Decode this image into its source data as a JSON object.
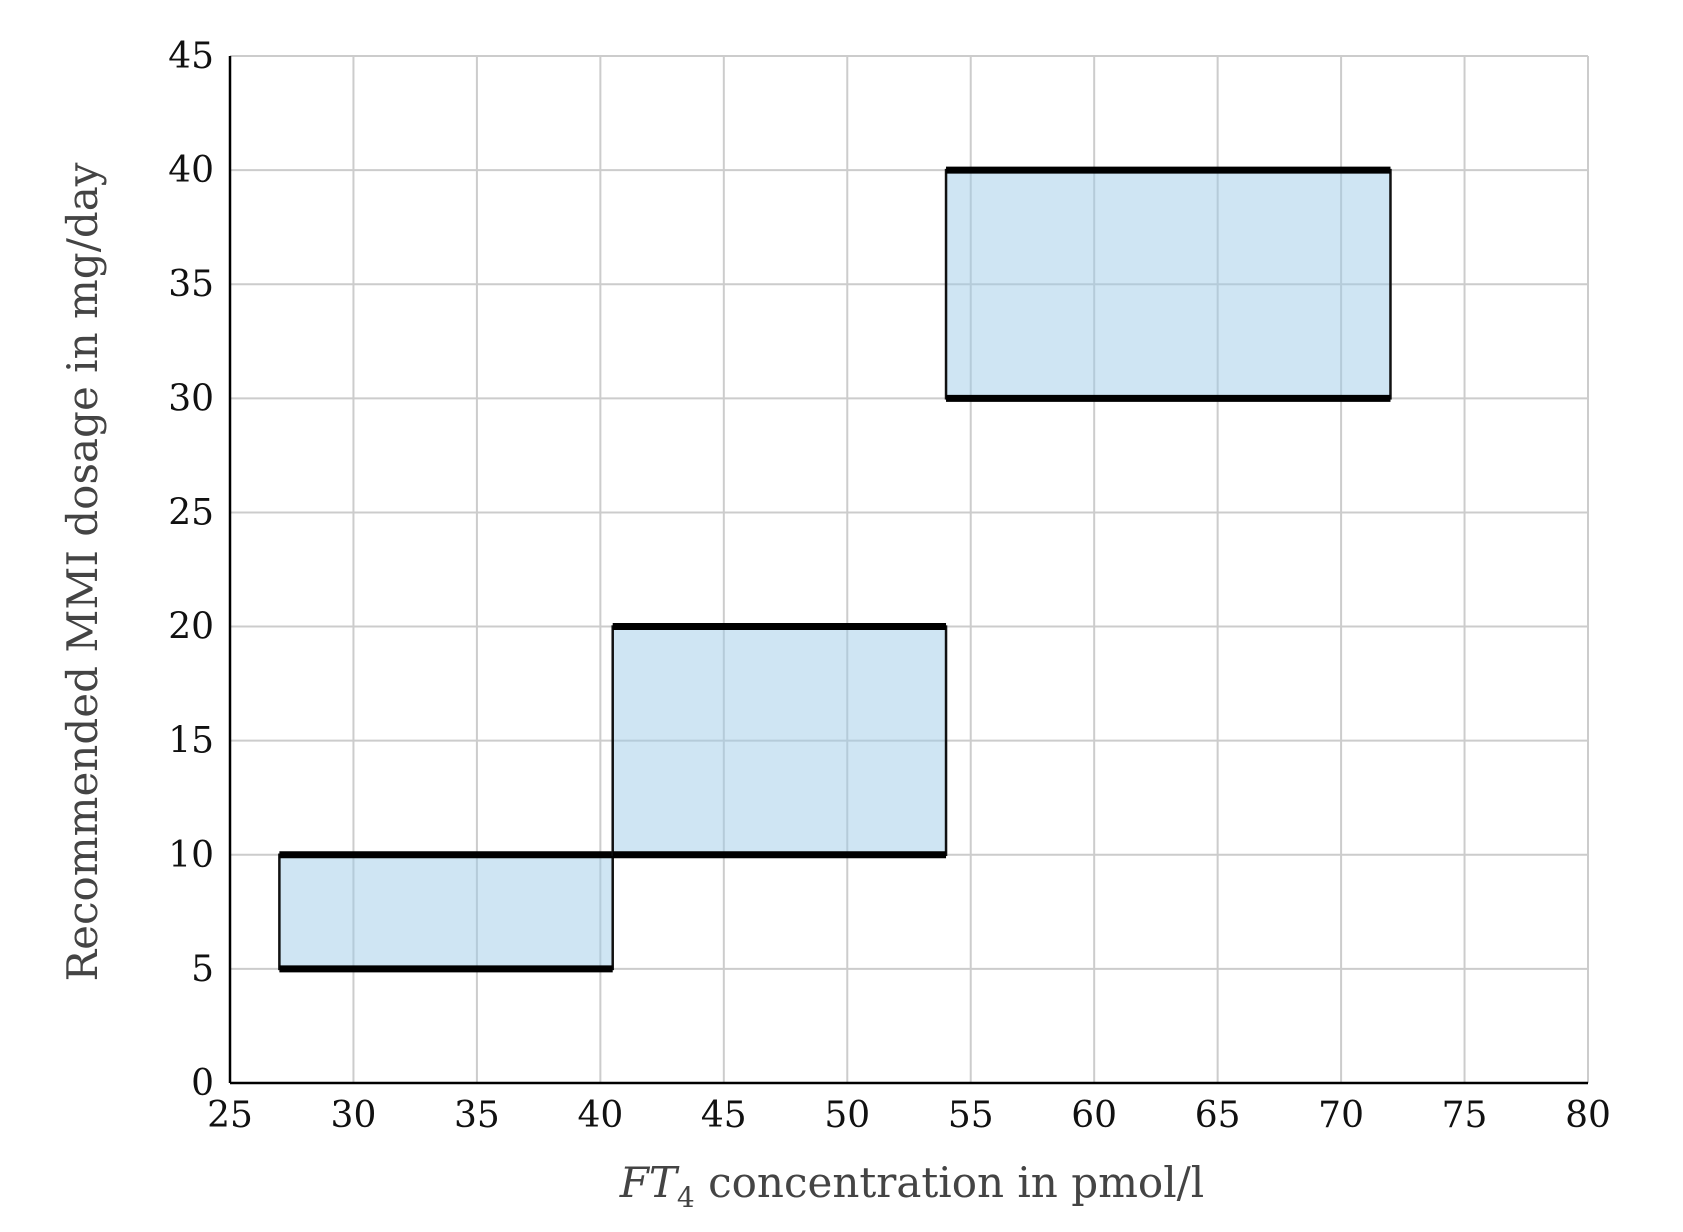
{
  "chart_data": {
    "type": "bar",
    "xlabel_main": "FT",
    "xlabel_sub": "4",
    "xlabel_rest": " concentration in pmol/l",
    "ylabel": "Recommended MMI dosage in mg/day",
    "xlim": [
      25,
      80
    ],
    "ylim": [
      0,
      45
    ],
    "xticks": [
      25,
      30,
      35,
      40,
      45,
      50,
      55,
      60,
      65,
      70,
      75,
      80
    ],
    "yticks": [
      0,
      5,
      10,
      15,
      20,
      25,
      30,
      35,
      40,
      45
    ],
    "grid": true,
    "fill_color": "#9ecae6",
    "ranges": [
      {
        "x_from": 27,
        "x_to": 40.5,
        "y_low": 5,
        "y_high": 10
      },
      {
        "x_from": 40.5,
        "x_to": 54,
        "y_low": 10,
        "y_high": 20
      },
      {
        "x_from": 54,
        "x_to": 72,
        "y_low": 30,
        "y_high": 40
      }
    ]
  }
}
